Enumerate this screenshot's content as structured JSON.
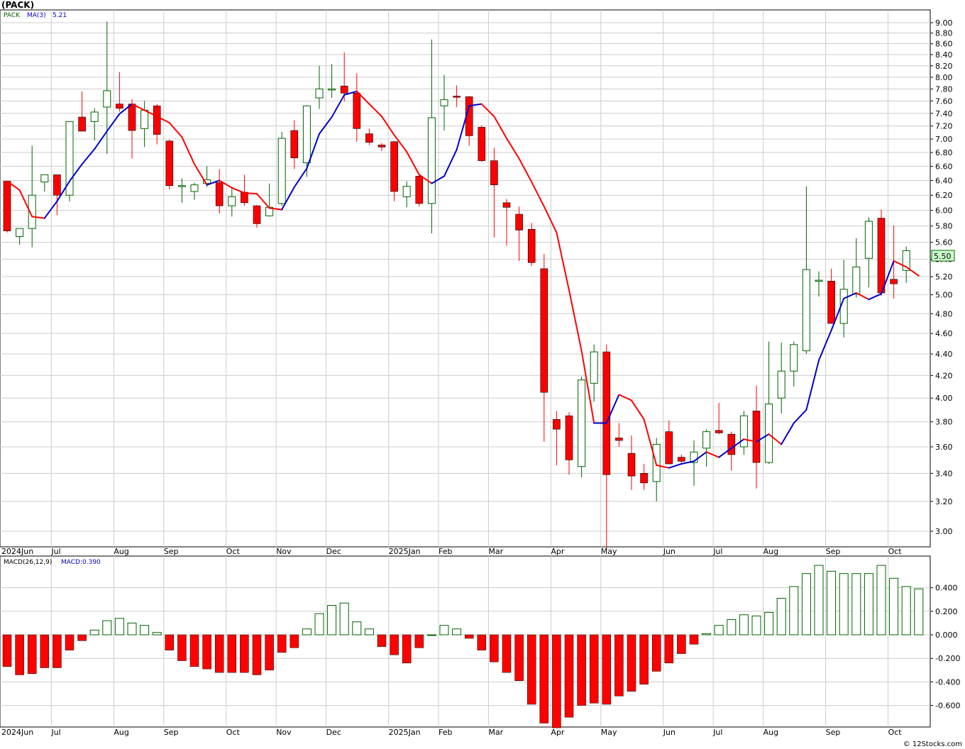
{
  "title": "(PACK)",
  "watermark": "© 12Stocks.com",
  "price_legend": {
    "symbol": "PACK",
    "ma_label": "MA(3)",
    "ma_value": "5.21"
  },
  "macd_legend": {
    "label": "MACD(26,12,9)",
    "value_label": "MACD:0.390"
  },
  "last_price_label": "5.50",
  "colors": {
    "up_candle": "#006400",
    "down_candle": "#ff0000",
    "ma_up": "#0000cc",
    "ma_down": "#ff0000",
    "grid": "#cccccc",
    "macd_pos": "#006400",
    "macd_neg": "#ff0000",
    "last_price_bg": "#ccffcc"
  },
  "chart_data": {
    "type": "candlestick",
    "period": "weekly",
    "x_labels": [
      "2024Jun",
      "Jul",
      "Aug",
      "Sep",
      "Oct",
      "Nov",
      "Dec",
      "2025Jan",
      "Feb",
      "Mar",
      "Apr",
      "May",
      "Jun",
      "Jul",
      "Aug",
      "Sep",
      "Oct"
    ],
    "price_axis": {
      "scale": "log",
      "ylim": [
        2.88,
        9.1
      ],
      "ticks": [
        "9.00",
        "8.80",
        "8.60",
        "8.40",
        "8.20",
        "8.00",
        "7.80",
        "7.60",
        "7.40",
        "7.20",
        "7.00",
        "6.80",
        "6.60",
        "6.40",
        "6.20",
        "6.00",
        "5.80",
        "5.60",
        "5.40",
        "5.20",
        "5.00",
        "4.80",
        "4.60",
        "4.40",
        "4.20",
        "4.00",
        "3.80",
        "3.60",
        "3.40",
        "3.20",
        "3.00"
      ]
    },
    "candles": [
      [
        6.39,
        6.39,
        5.72,
        5.74
      ],
      [
        5.67,
        5.77,
        5.57,
        5.77
      ],
      [
        5.77,
        6.9,
        5.54,
        6.2
      ],
      [
        6.38,
        6.48,
        6.25,
        6.48
      ],
      [
        6.48,
        6.48,
        5.94,
        6.2
      ],
      [
        6.2,
        7.27,
        6.12,
        7.27
      ],
      [
        7.34,
        7.76,
        7.12,
        7.12
      ],
      [
        7.27,
        7.48,
        6.98,
        7.42
      ],
      [
        7.5,
        9.02,
        6.78,
        7.77
      ],
      [
        7.55,
        8.09,
        7.43,
        7.48
      ],
      [
        7.55,
        7.63,
        6.71,
        7.13
      ],
      [
        7.16,
        7.6,
        6.88,
        7.45
      ],
      [
        7.52,
        7.55,
        6.92,
        7.07
      ],
      [
        6.97,
        6.99,
        6.28,
        6.33
      ],
      [
        6.33,
        6.43,
        6.1,
        6.33
      ],
      [
        6.25,
        6.37,
        6.14,
        6.34
      ],
      [
        6.36,
        6.6,
        6.31,
        6.41
      ],
      [
        6.37,
        6.56,
        5.96,
        6.06
      ],
      [
        6.06,
        6.29,
        5.92,
        6.18
      ],
      [
        6.24,
        6.48,
        6.06,
        6.1
      ],
      [
        6.06,
        6.07,
        5.78,
        5.83
      ],
      [
        5.93,
        6.36,
        5.92,
        6.04
      ],
      [
        6.09,
        7.11,
        6.06,
        7.01
      ],
      [
        7.13,
        7.29,
        6.56,
        6.72
      ],
      [
        6.65,
        7.53,
        6.45,
        7.52
      ],
      [
        7.65,
        8.2,
        7.47,
        7.8
      ],
      [
        7.8,
        8.23,
        7.65,
        7.8
      ],
      [
        7.85,
        8.44,
        7.59,
        7.73
      ],
      [
        7.73,
        8.07,
        6.96,
        7.16
      ],
      [
        7.08,
        7.16,
        6.91,
        6.95
      ],
      [
        6.91,
        6.94,
        6.82,
        6.88
      ],
      [
        6.96,
        6.97,
        6.12,
        6.25
      ],
      [
        6.18,
        6.39,
        6.04,
        6.32
      ],
      [
        6.46,
        6.48,
        6.05,
        6.09
      ],
      [
        6.09,
        8.68,
        5.71,
        7.33
      ],
      [
        7.52,
        8.04,
        7.13,
        7.62
      ],
      [
        7.68,
        7.86,
        7.5,
        7.66
      ],
      [
        7.67,
        7.68,
        6.9,
        7.05
      ],
      [
        7.18,
        7.21,
        6.66,
        6.68
      ],
      [
        6.68,
        6.87,
        5.66,
        6.34
      ],
      [
        6.1,
        6.15,
        5.56,
        6.04
      ],
      [
        5.95,
        6.05,
        5.38,
        5.75
      ],
      [
        5.76,
        5.84,
        5.32,
        5.36
      ],
      [
        5.29,
        5.46,
        3.64,
        4.05
      ],
      [
        3.82,
        3.89,
        3.46,
        3.74
      ],
      [
        3.85,
        3.88,
        3.39,
        3.5
      ],
      [
        3.45,
        4.19,
        3.37,
        4.16
      ],
      [
        4.13,
        4.49,
        3.97,
        4.42
      ],
      [
        4.42,
        4.49,
        2.88,
        3.39
      ],
      [
        3.67,
        3.79,
        3.6,
        3.65
      ],
      [
        3.55,
        3.69,
        3.28,
        3.38
      ],
      [
        3.4,
        3.47,
        3.28,
        3.33
      ],
      [
        3.34,
        3.67,
        3.2,
        3.62
      ],
      [
        3.72,
        3.81,
        3.47,
        3.47
      ],
      [
        3.52,
        3.54,
        3.48,
        3.49
      ],
      [
        3.48,
        3.65,
        3.31,
        3.56
      ],
      [
        3.59,
        3.74,
        3.45,
        3.72
      ],
      [
        3.73,
        3.96,
        3.7,
        3.71
      ],
      [
        3.7,
        3.72,
        3.42,
        3.54
      ],
      [
        3.6,
        3.89,
        3.54,
        3.85
      ],
      [
        3.89,
        4.11,
        3.29,
        3.48
      ],
      [
        3.48,
        4.52,
        3.47,
        3.95
      ],
      [
        4.0,
        4.51,
        3.87,
        4.24
      ],
      [
        4.24,
        4.52,
        4.1,
        4.49
      ],
      [
        4.43,
        6.32,
        4.4,
        5.28
      ],
      [
        5.16,
        5.26,
        4.98,
        5.16
      ],
      [
        5.15,
        5.29,
        4.7,
        4.7
      ],
      [
        4.7,
        5.39,
        4.56,
        5.06
      ],
      [
        5.01,
        5.65,
        4.97,
        5.31
      ],
      [
        5.41,
        5.91,
        5.08,
        5.86
      ],
      [
        5.9,
        6.01,
        4.99,
        5.02
      ],
      [
        5.17,
        5.81,
        4.96,
        5.12
      ],
      [
        5.27,
        5.55,
        5.13,
        5.5
      ]
    ],
    "ma3": [
      6.39,
      6.27,
      5.92,
      5.9,
      6.12,
      6.39,
      6.63,
      6.85,
      7.12,
      7.39,
      7.55,
      7.45,
      7.35,
      7.25,
      7.03,
      6.63,
      6.34,
      6.4,
      6.3,
      6.23,
      6.22,
      6.03,
      6.01,
      6.31,
      6.57,
      7.08,
      7.34,
      7.7,
      7.76,
      7.55,
      7.35,
      7.06,
      6.81,
      6.48,
      6.36,
      6.46,
      6.84,
      7.52,
      7.55,
      7.35,
      7.01,
      6.71,
      6.38,
      6.05,
      5.72,
      5.05,
      4.43,
      3.79,
      3.79,
      4.03,
      3.98,
      3.82,
      3.46,
      3.44,
      3.47,
      3.49,
      3.56,
      3.52,
      3.59,
      3.66,
      3.64,
      3.7,
      3.62,
      3.79,
      3.9,
      4.34,
      4.63,
      4.96,
      5.02,
      4.95,
      5.01,
      5.38,
      5.31,
      5.21
    ],
    "macd_axis": {
      "ylim": [
        -0.78,
        0.62
      ],
      "ticks": [
        "0.400",
        "0.200",
        "0.000",
        "-0.200",
        "-0.400",
        "-0.600"
      ]
    },
    "macd": [
      -0.27,
      -0.34,
      -0.33,
      -0.28,
      -0.28,
      -0.13,
      -0.05,
      0.04,
      0.12,
      0.14,
      0.1,
      0.08,
      0.02,
      -0.13,
      -0.22,
      -0.27,
      -0.29,
      -0.32,
      -0.32,
      -0.32,
      -0.34,
      -0.3,
      -0.15,
      -0.11,
      0.05,
      0.18,
      0.25,
      0.27,
      0.11,
      0.05,
      -0.1,
      -0.17,
      -0.24,
      -0.11,
      0.0,
      0.08,
      0.05,
      -0.03,
      -0.13,
      -0.23,
      -0.32,
      -0.39,
      -0.59,
      -0.75,
      -0.79,
      -0.7,
      -0.6,
      -0.58,
      -0.59,
      -0.52,
      -0.48,
      -0.42,
      -0.31,
      -0.24,
      -0.16,
      -0.08,
      0.01,
      0.08,
      0.13,
      0.17,
      0.16,
      0.19,
      0.31,
      0.41,
      0.52,
      0.59,
      0.54,
      0.52,
      0.52,
      0.52,
      0.59,
      0.48,
      0.41,
      0.39
    ]
  }
}
